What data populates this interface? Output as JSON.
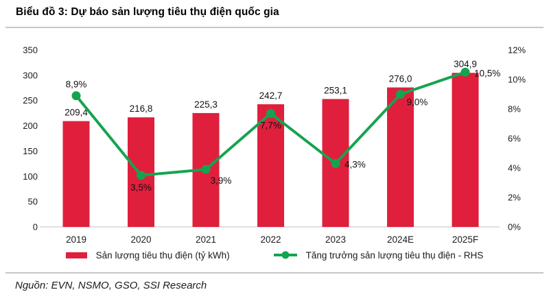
{
  "header": {
    "title": "Biểu đồ 3: Dự báo sản lượng tiêu thụ điện quốc gia"
  },
  "footer": {
    "source": "Nguồn: EVN, NSMO, GSO, SSI Research"
  },
  "colors": {
    "bar": "#e01f3d",
    "line": "#14a44f",
    "text": "#1a1a1a",
    "axis_line": "#d6d6d6"
  },
  "chart_data": {
    "type": "bar+line",
    "title": "Biểu đồ 3: Dự báo sản lượng tiêu thụ điện quốc gia",
    "categories": [
      "2019",
      "2020",
      "2021",
      "2022",
      "2023",
      "2024E",
      "2025F"
    ],
    "series": [
      {
        "name": "Sản lượng tiêu thụ điện (tỷ kWh)",
        "type": "bar",
        "axis": "left",
        "values": [
          209.4,
          216.8,
          225.3,
          242.7,
          253.1,
          276.0,
          304.9
        ],
        "labels": [
          "209,4",
          "216,8",
          "225,3",
          "242,7",
          "253,1",
          "276,0",
          "304,9"
        ]
      },
      {
        "name": "Tăng trưởng sản lượng tiêu thụ điện - RHS",
        "type": "line",
        "axis": "right",
        "values": [
          8.9,
          3.5,
          3.9,
          7.7,
          4.3,
          9.0,
          10.5
        ],
        "labels": [
          "8,9%",
          "3,5%",
          "3,9%",
          "7,7%",
          "4,3%",
          "9,0%",
          "10,5%"
        ],
        "label_placement": [
          "above",
          "below",
          "below-r",
          "below",
          "right",
          "below-right",
          "right"
        ]
      }
    ],
    "left_axis": {
      "min": 0,
      "max": 350,
      "step": 50,
      "ticks": [
        "350",
        "300",
        "250",
        "200",
        "150",
        "100",
        "50",
        "0"
      ]
    },
    "right_axis": {
      "min": 0,
      "max": 12,
      "step": 2,
      "ticks": [
        "12%",
        "10%",
        "8%",
        "6%",
        "4%",
        "2%",
        "0%"
      ]
    },
    "grid": false,
    "legend_position": "bottom"
  }
}
